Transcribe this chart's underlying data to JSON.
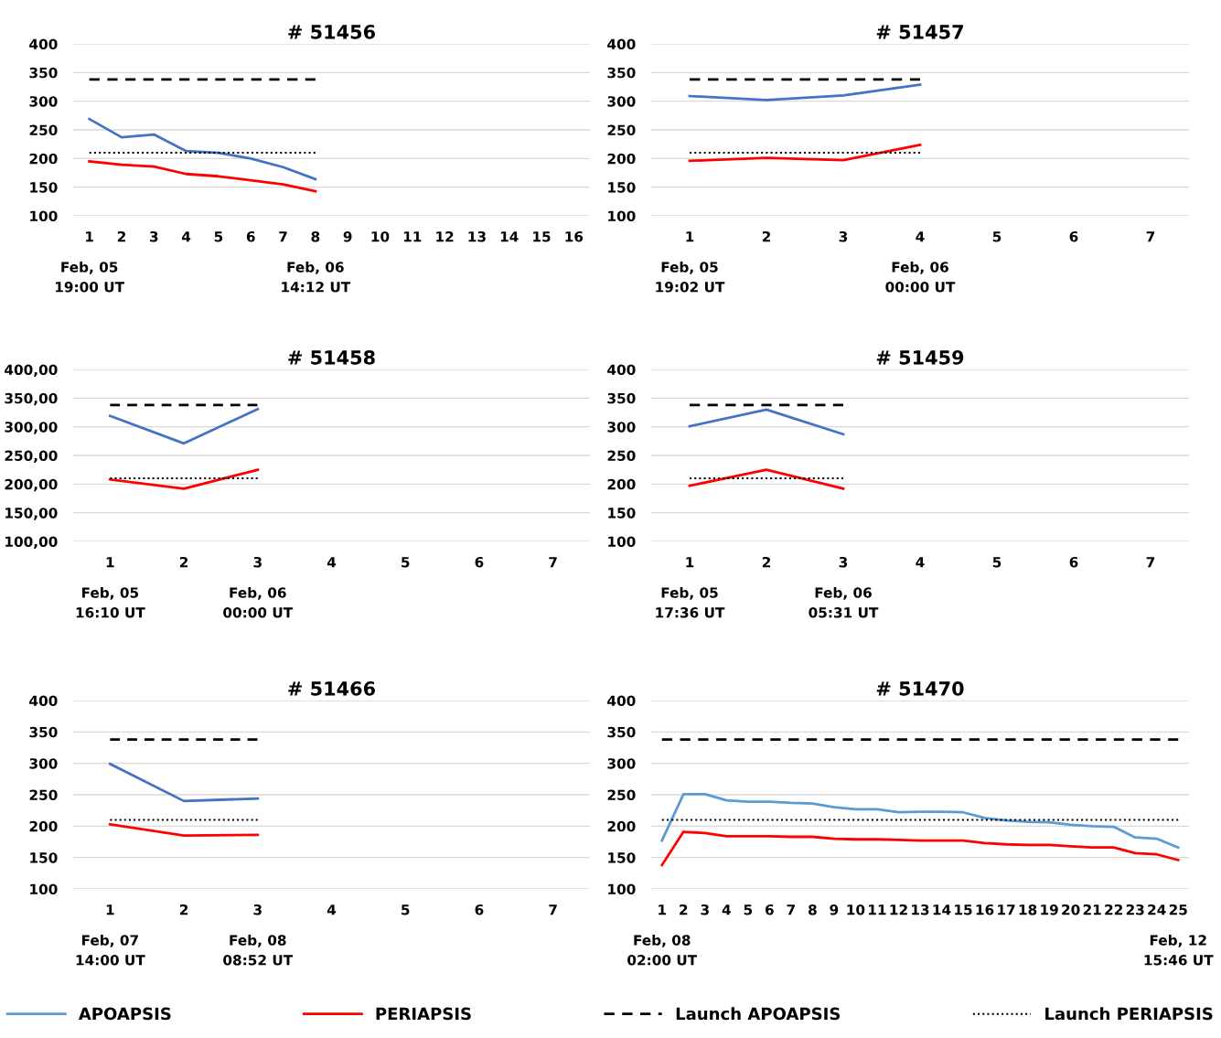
{
  "chart_data": [
    {
      "type": "line",
      "title": "# 51456",
      "categories": [
        "1",
        "2",
        "3",
        "4",
        "5",
        "6",
        "7",
        "8",
        "9",
        "10",
        "11",
        "12",
        "13",
        "14",
        "15",
        "16"
      ],
      "ylim": [
        100,
        400
      ],
      "yticks": [
        100,
        150,
        200,
        250,
        300,
        350,
        400
      ],
      "grid": "y",
      "series": [
        {
          "color": "#4472c4",
          "line_style": "solid",
          "values": [
            269,
            237,
            242,
            213,
            210,
            200,
            185,
            164,
            null,
            null,
            null,
            null,
            null,
            null,
            null,
            null
          ]
        },
        {
          "color": "#ff0000",
          "line_style": "solid",
          "values": [
            195,
            189,
            186,
            173,
            169,
            162,
            155,
            143,
            null,
            null,
            null,
            null,
            null,
            null,
            null,
            null
          ]
        },
        {
          "color": "#000000",
          "line_style": "dashed",
          "values": [
            338,
            338,
            338,
            338,
            338,
            338,
            338,
            338,
            null,
            null,
            null,
            null,
            null,
            null,
            null,
            null
          ]
        },
        {
          "color": "#000000",
          "line_style": "dotted",
          "values": [
            210,
            210,
            210,
            210,
            210,
            210,
            210,
            210,
            null,
            null,
            null,
            null,
            null,
            null,
            null,
            null
          ]
        }
      ],
      "annotations": [
        "Feb, 05\n19:00 UT",
        "Feb, 06\n14:12 UT"
      ]
    },
    {
      "type": "line",
      "title": "# 51457",
      "categories": [
        "1",
        "2",
        "3",
        "4",
        "5",
        "6",
        "7"
      ],
      "ylim": [
        100,
        400
      ],
      "yticks": [
        100,
        150,
        200,
        250,
        300,
        350,
        400
      ],
      "grid": "y",
      "series": [
        {
          "color": "#4472c4",
          "line_style": "solid",
          "values": [
            309,
            302,
            310,
            329,
            null,
            null,
            null
          ]
        },
        {
          "color": "#ff0000",
          "line_style": "solid",
          "values": [
            196,
            201,
            197,
            224,
            null,
            null,
            null
          ]
        },
        {
          "color": "#000000",
          "line_style": "dashed",
          "values": [
            338,
            338,
            338,
            338,
            null,
            null,
            null
          ]
        },
        {
          "color": "#000000",
          "line_style": "dotted",
          "values": [
            210,
            210,
            210,
            210,
            null,
            null,
            null
          ]
        }
      ],
      "annotations": [
        "Feb, 05\n19:02 UT",
        "Feb, 06\n00:00 UT"
      ]
    },
    {
      "type": "line",
      "title": "# 51458",
      "categories": [
        "1",
        "2",
        "3",
        "4",
        "5",
        "6",
        "7"
      ],
      "ylim": [
        100,
        400
      ],
      "yticks": [
        {
          "value": 100,
          "label": "100,00"
        },
        {
          "value": 150,
          "label": "150,00"
        },
        {
          "value": 200,
          "label": "200,00"
        },
        {
          "value": 250,
          "label": "250,00"
        },
        {
          "value": 300,
          "label": "300,00"
        },
        {
          "value": 350,
          "label": "350,00"
        },
        {
          "value": 400,
          "label": "400,00"
        }
      ],
      "grid": "y",
      "series": [
        {
          "color": "#4472c4",
          "line_style": "solid",
          "values": [
            319,
            271,
            331,
            null,
            null,
            null,
            null
          ]
        },
        {
          "color": "#ff0000",
          "line_style": "solid",
          "values": [
            208,
            192,
            225,
            null,
            null,
            null,
            null
          ]
        },
        {
          "color": "#000000",
          "line_style": "dashed",
          "values": [
            338,
            338,
            338,
            null,
            null,
            null,
            null
          ]
        },
        {
          "color": "#000000",
          "line_style": "dotted",
          "values": [
            210,
            210,
            210,
            null,
            null,
            null,
            null
          ]
        }
      ],
      "annotations": [
        "Feb, 05\n16:10 UT",
        "Feb, 06\n00:00 UT"
      ]
    },
    {
      "type": "line",
      "title": "# 51459",
      "categories": [
        "1",
        "2",
        "3",
        "4",
        "5",
        "6",
        "7"
      ],
      "ylim": [
        100,
        400
      ],
      "yticks": [
        100,
        150,
        200,
        250,
        300,
        350,
        400
      ],
      "grid": "y",
      "series": [
        {
          "color": "#4472c4",
          "line_style": "solid",
          "values": [
            301,
            330,
            287,
            null,
            null,
            null,
            null
          ]
        },
        {
          "color": "#ff0000",
          "line_style": "solid",
          "values": [
            197,
            225,
            192,
            null,
            null,
            null,
            null
          ]
        },
        {
          "color": "#000000",
          "line_style": "dashed",
          "values": [
            338,
            338,
            338,
            null,
            null,
            null,
            null
          ]
        },
        {
          "color": "#000000",
          "line_style": "dotted",
          "values": [
            210,
            210,
            210,
            null,
            null,
            null,
            null
          ]
        }
      ],
      "annotations": [
        "Feb, 05\n17:36 UT",
        "Feb, 06\n05:31 UT"
      ]
    },
    {
      "type": "line",
      "title": "# 51466",
      "categories": [
        "1",
        "2",
        "3",
        "4",
        "5",
        "6",
        "7"
      ],
      "ylim": [
        100,
        400
      ],
      "yticks": [
        100,
        150,
        200,
        250,
        300,
        350,
        400
      ],
      "grid": "y",
      "series": [
        {
          "color": "#4472c4",
          "line_style": "solid",
          "values": [
            299,
            240,
            244,
            null,
            null,
            null,
            null
          ]
        },
        {
          "color": "#ff0000",
          "line_style": "solid",
          "values": [
            203,
            185,
            186,
            null,
            null,
            null,
            null
          ]
        },
        {
          "color": "#000000",
          "line_style": "dashed",
          "values": [
            338,
            338,
            338,
            null,
            null,
            null,
            null
          ]
        },
        {
          "color": "#000000",
          "line_style": "dotted",
          "values": [
            210,
            210,
            210,
            null,
            null,
            null,
            null
          ]
        }
      ],
      "annotations": [
        "Feb, 07\n14:00 UT",
        "Feb, 08\n08:52 UT"
      ]
    },
    {
      "type": "line",
      "title": "# 51470",
      "categories": [
        "1",
        "2",
        "3",
        "4",
        "5",
        "6",
        "7",
        "8",
        "9",
        "10",
        "11",
        "12",
        "13",
        "14",
        "15",
        "16",
        "17",
        "18",
        "19",
        "20",
        "21",
        "22",
        "23",
        "24",
        "25"
      ],
      "ylim": [
        100,
        400
      ],
      "yticks": [
        100,
        150,
        200,
        250,
        300,
        350,
        400
      ],
      "grid": "y",
      "legend": "bottom",
      "series": [
        {
          "name": "APOAPSIS",
          "color": "#5b9bd5",
          "line_style": "solid",
          "values": [
            177,
            251,
            251,
            241,
            239,
            239,
            237,
            236,
            230,
            227,
            227,
            222,
            223,
            223,
            222,
            213,
            209,
            207,
            206,
            202,
            200,
            199,
            182,
            180,
            166
          ]
        },
        {
          "name": "PERIAPSIS",
          "color": "#ff0000",
          "line_style": "solid",
          "values": [
            138,
            191,
            189,
            184,
            184,
            184,
            183,
            183,
            180,
            179,
            179,
            178,
            177,
            177,
            177,
            173,
            171,
            170,
            170,
            168,
            166,
            166,
            157,
            155,
            146
          ]
        },
        {
          "name": "Launch APOAPSIS",
          "color": "#000000",
          "line_style": "dashed",
          "values": [
            338,
            338,
            338,
            338,
            338,
            338,
            338,
            338,
            338,
            338,
            338,
            338,
            338,
            338,
            338,
            338,
            338,
            338,
            338,
            338,
            338,
            338,
            338,
            338,
            338
          ]
        },
        {
          "name": "Launch PERIAPSIS",
          "color": "#000000",
          "line_style": "dotted",
          "values": [
            210,
            210,
            210,
            210,
            210,
            210,
            210,
            210,
            210,
            210,
            210,
            210,
            210,
            210,
            210,
            210,
            210,
            210,
            210,
            210,
            210,
            210,
            210,
            210,
            210
          ]
        }
      ],
      "annotations": [
        "Feb, 08\n02:00 UT",
        "Feb, 12\n15:46 UT"
      ]
    }
  ]
}
